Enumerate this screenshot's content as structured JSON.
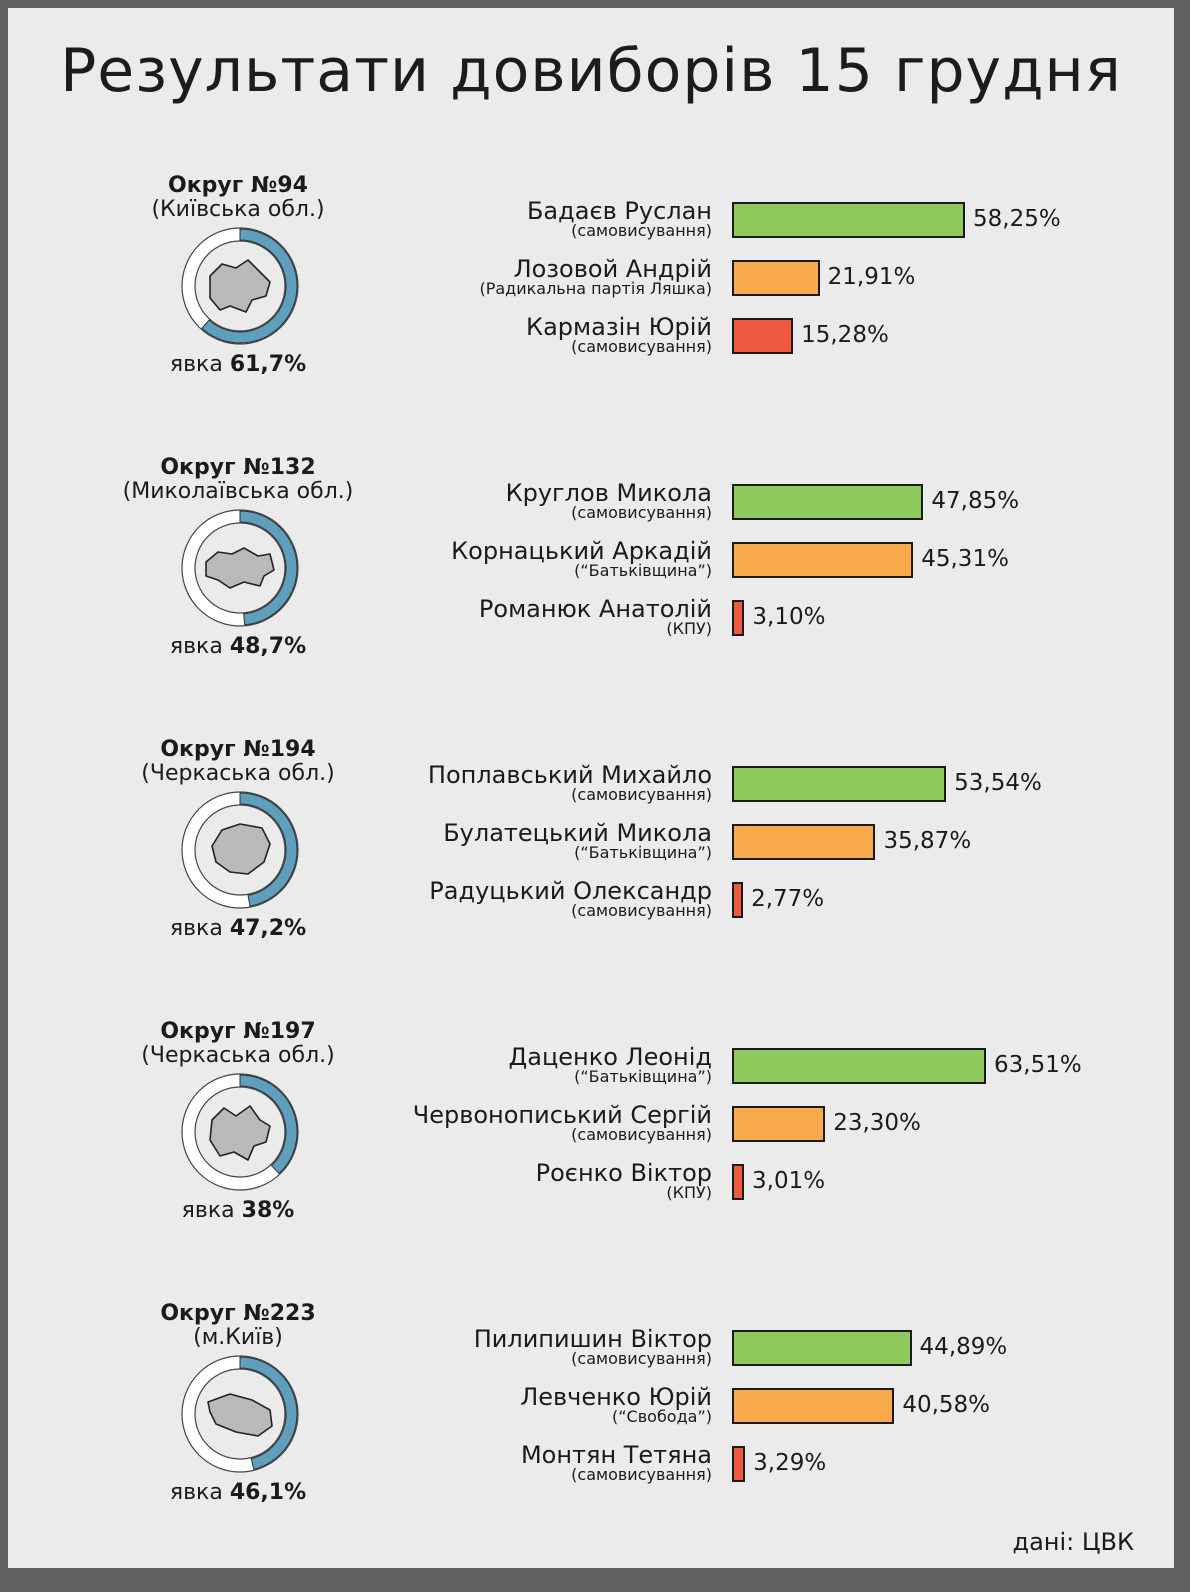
{
  "title": "Результати довиборів 15 грудня",
  "source": "дані: ЦВК",
  "turnout_label": "явка",
  "colors": {
    "first": "#8dc95d",
    "second": "#f9ab4b",
    "third": "#ee5a40",
    "turnout": "#5d9fbd",
    "map": "#b9b9b9"
  },
  "chart_data": {
    "type": "bar",
    "title": "Результати довиборів 15 грудня",
    "districts": [
      {
        "name": "Округ №94",
        "region": "(Київська обл.)",
        "turnout": 61.7,
        "turnout_text": "61,7%",
        "candidates": [
          {
            "name": "Бадаєв Руслан",
            "party": "(самовисування)",
            "value": 58.25,
            "label": "58,25%"
          },
          {
            "name": "Лозовой Андрій",
            "party": "(Радикальна партія Ляшка)",
            "value": 21.91,
            "label": "21,91%"
          },
          {
            "name": "Кармазін Юрій",
            "party": "(самовисування)",
            "value": 15.28,
            "label": "15,28%"
          }
        ]
      },
      {
        "name": "Округ №132",
        "region": "(Миколаївська обл.)",
        "turnout": 48.7,
        "turnout_text": "48,7%",
        "candidates": [
          {
            "name": "Круглов Микола",
            "party": "(самовисування)",
            "value": 47.85,
            "label": "47,85%"
          },
          {
            "name": "Корнацький Аркадій",
            "party": "(“Батьківщина”)",
            "value": 45.31,
            "label": "45,31%"
          },
          {
            "name": "Романюк Анатолій",
            "party": "(КПУ)",
            "value": 3.1,
            "label": "3,10%"
          }
        ]
      },
      {
        "name": "Округ №194",
        "region": "(Черкаська обл.)",
        "turnout": 47.2,
        "turnout_text": "47,2%",
        "candidates": [
          {
            "name": "Поплавський Михайло",
            "party": "(самовисування)",
            "value": 53.54,
            "label": "53,54%"
          },
          {
            "name": "Булатецький Микола",
            "party": "(“Батьківщина”)",
            "value": 35.87,
            "label": "35,87%"
          },
          {
            "name": "Радуцький Олександр",
            "party": "(самовисування)",
            "value": 2.77,
            "label": "2,77%"
          }
        ]
      },
      {
        "name": "Округ №197",
        "region": "(Черкаська обл.)",
        "turnout": 38,
        "turnout_text": "38%",
        "candidates": [
          {
            "name": "Даценко Леонід",
            "party": "(“Батьківщина”)",
            "value": 63.51,
            "label": "63,51%"
          },
          {
            "name": "Червонописький Сергій",
            "party": "(самовисування)",
            "value": 23.3,
            "label": "23,30%"
          },
          {
            "name": "Роєнко Віктор",
            "party": "(КПУ)",
            "value": 3.01,
            "label": "3,01%"
          }
        ]
      },
      {
        "name": "Округ №223",
        "region": "(м.Київ)",
        "turnout": 46.1,
        "turnout_text": "46,1%",
        "candidates": [
          {
            "name": "Пилипишин Віктор",
            "party": "(самовисування)",
            "value": 44.89,
            "label": "44,89%"
          },
          {
            "name": "Левченко Юрій",
            "party": "(“Свобода”)",
            "value": 40.58,
            "label": "40,58%"
          },
          {
            "name": "Монтян Тетяна",
            "party": "(самовисування)",
            "value": 3.29,
            "label": "3,29%"
          }
        ]
      }
    ]
  }
}
